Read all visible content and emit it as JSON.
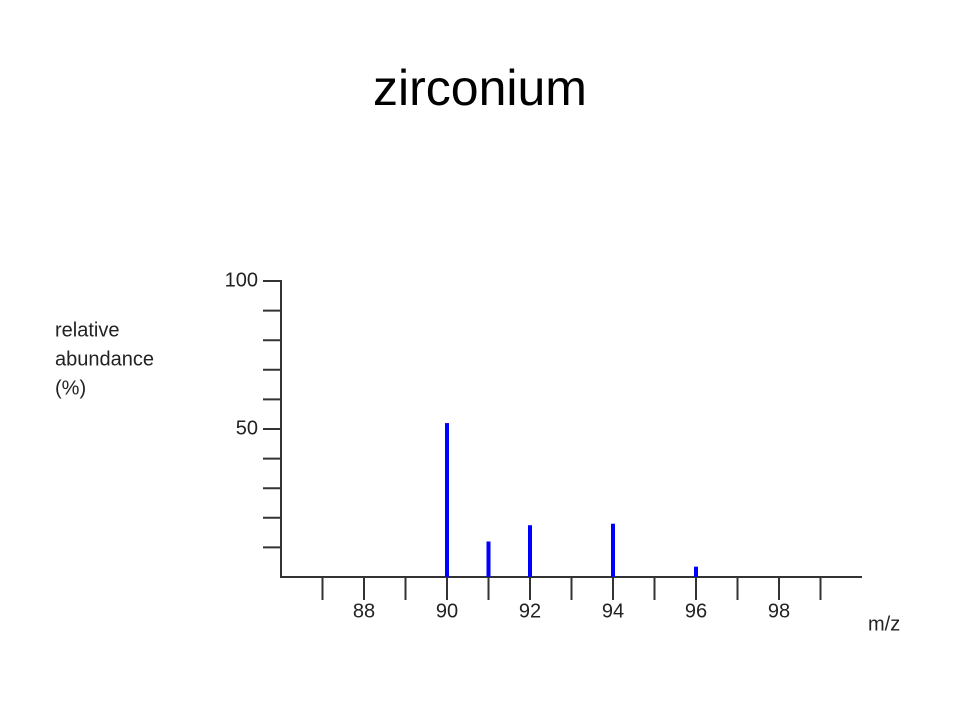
{
  "chart_data": {
    "type": "bar",
    "title": "zirconium",
    "ylabel_lines": [
      "relative",
      "abundance",
      "(%)"
    ],
    "xlabel": "m/z",
    "x": [
      90,
      91,
      92,
      94,
      96
    ],
    "values": [
      52,
      12,
      17.5,
      18,
      3.5
    ],
    "color": "#0000ff",
    "xlim": [
      86,
      100
    ],
    "xticks": [
      88,
      90,
      92,
      94,
      96,
      98
    ],
    "xticks_minor": [
      87,
      89,
      91,
      93,
      95,
      97,
      99
    ],
    "ylim": [
      0,
      100
    ],
    "yticks": [
      50,
      100
    ],
    "yticks_minor": [
      10,
      20,
      30,
      40,
      60,
      70,
      80,
      90
    ]
  }
}
